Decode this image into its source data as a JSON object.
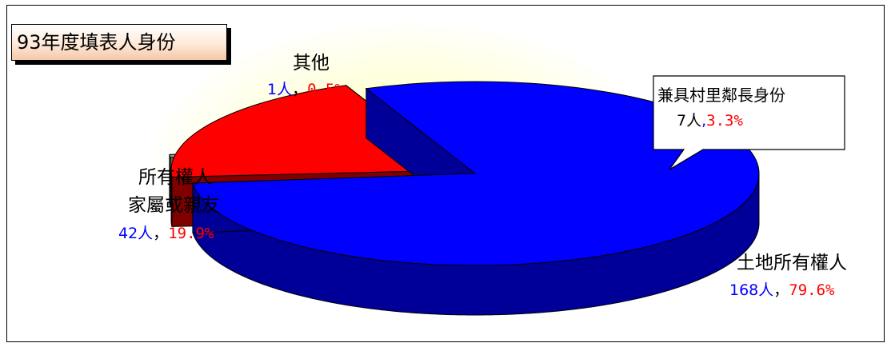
{
  "title": "93年度填表人身份",
  "chart_data": {
    "type": "pie",
    "title": "93年度填表人身份",
    "slices": [
      {
        "label": "土地所有權人",
        "count": "168人",
        "percent": "79.6%",
        "value": 79.6,
        "color": "#0000ff",
        "shade": "#000099"
      },
      {
        "label": "所有權人家屬或親友",
        "label_lines": [
          "所有權人",
          "家屬或親友"
        ],
        "count": "42人",
        "percent": "19.9%",
        "value": 19.9,
        "color": "#ff0000",
        "shade": "#800000"
      },
      {
        "label": "其他",
        "count": "1人",
        "percent": "0.5%",
        "value": 0.5,
        "color": "#999988",
        "shade": "#66665a"
      }
    ],
    "callout": {
      "label": "兼具村里鄰長身份",
      "count": "7人",
      "percent": "3.3%"
    },
    "separator": "，",
    "callout_separator": ","
  }
}
